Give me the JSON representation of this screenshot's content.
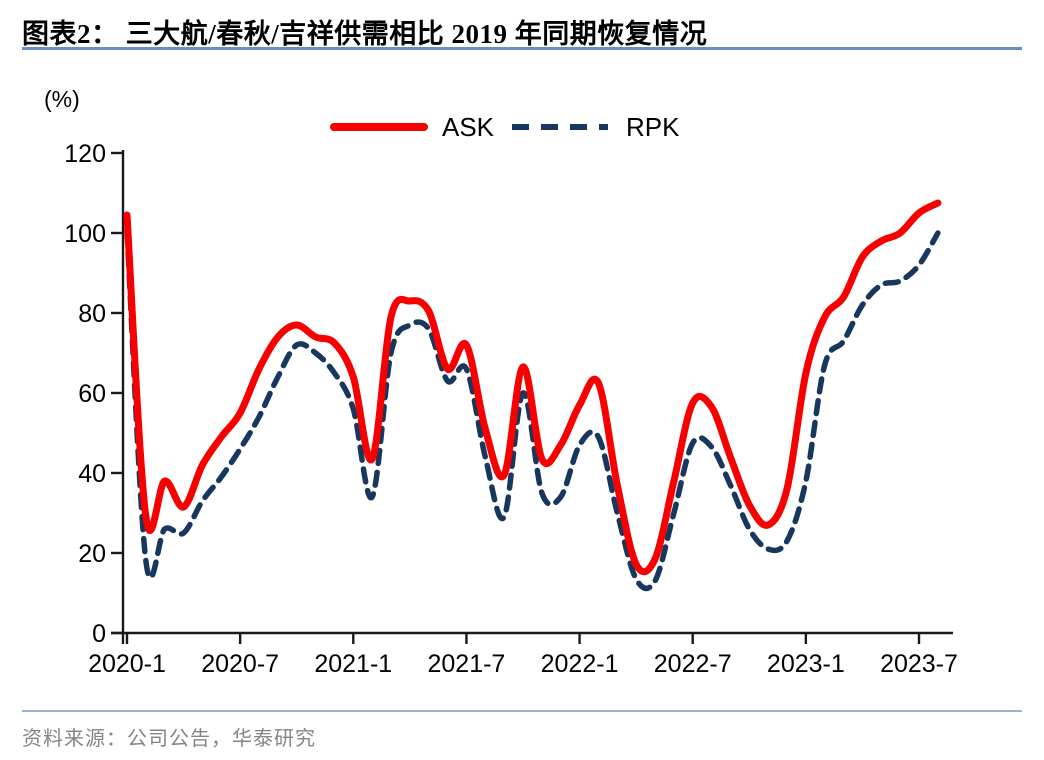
{
  "header": {
    "title": "图表2：  三大航/春秋/吉祥供需相比 2019 年同期恢复情况"
  },
  "chart": {
    "unit_label": "(%)",
    "axis_color": "#1a1a1a",
    "legend": {
      "ask_label": "ASK",
      "rpk_label": "RPK"
    }
  },
  "chart_data": {
    "type": "line",
    "title": "三大航/春秋/吉祥供需相比 2019 年同期恢复情况",
    "ylabel": "(%)",
    "ylim": [
      0,
      120
    ],
    "ytick_values": [
      0,
      20,
      40,
      60,
      80,
      100,
      120
    ],
    "xtick_labels": [
      "2020-1",
      "2020-7",
      "2021-1",
      "2021-7",
      "2022-1",
      "2022-7",
      "2023-1",
      "2023-7"
    ],
    "grid": false,
    "legend_position": "top",
    "x": [
      "2020-1",
      "2020-2",
      "2020-3",
      "2020-4",
      "2020-5",
      "2020-6",
      "2020-7",
      "2020-8",
      "2020-9",
      "2020-10",
      "2020-11",
      "2020-12",
      "2021-1",
      "2021-2",
      "2021-3",
      "2021-4",
      "2021-5",
      "2021-6",
      "2021-7",
      "2021-8",
      "2021-9",
      "2021-10",
      "2021-11",
      "2021-12",
      "2022-1",
      "2022-2",
      "2022-3",
      "2022-4",
      "2022-5",
      "2022-6",
      "2022-7",
      "2022-8",
      "2022-9",
      "2022-10",
      "2022-11",
      "2022-12",
      "2023-1",
      "2023-2",
      "2023-3",
      "2023-4",
      "2023-5",
      "2023-6",
      "2023-7",
      "2023-8"
    ],
    "series": [
      {
        "name": "RPK",
        "style": "dashed",
        "color": "#17375e",
        "values": [
          100.5,
          18,
          26,
          25,
          33,
          39,
          46,
          54,
          64,
          72,
          70,
          65,
          56,
          34,
          70,
          77,
          76,
          63,
          66,
          44,
          29,
          60,
          35,
          34,
          47,
          49,
          30,
          13.5,
          13,
          30,
          47.5,
          46.5,
          37,
          26,
          21,
          23,
          38,
          67,
          73,
          82,
          87,
          88,
          92,
          100
        ]
      },
      {
        "name": "ASK",
        "style": "solid",
        "color": "#f80000",
        "values": [
          104.5,
          29,
          38,
          31.5,
          42,
          49,
          55,
          66,
          74,
          77,
          74,
          72.5,
          64,
          43.5,
          79,
          83,
          80.5,
          66,
          72,
          51,
          39.5,
          66.5,
          43.5,
          47,
          57,
          62.5,
          37,
          17.2,
          18.5,
          38,
          57.5,
          56.5,
          44,
          32,
          27,
          36,
          65,
          79,
          84,
          94,
          98,
          100,
          105,
          107.5
        ]
      }
    ]
  },
  "footer": {
    "source": "资料来源：公司公告，华泰研究"
  }
}
